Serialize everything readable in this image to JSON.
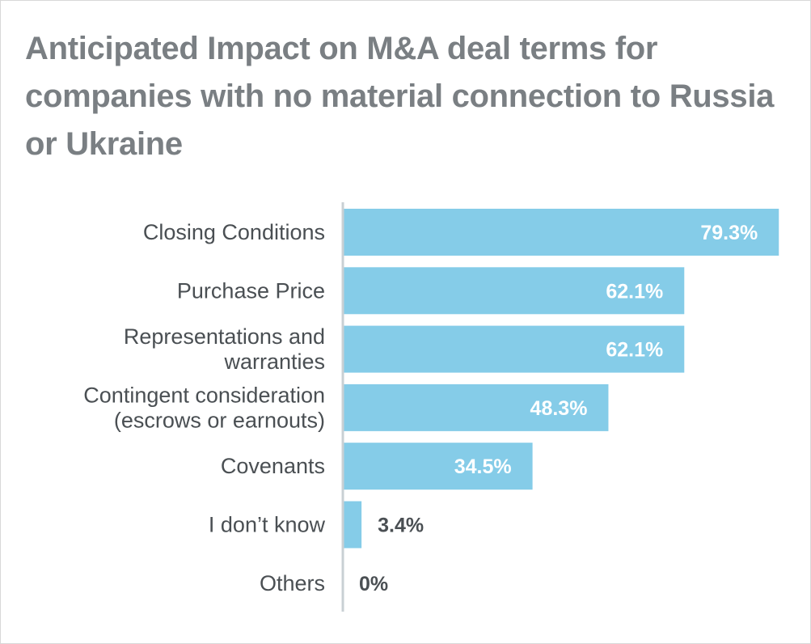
{
  "chart_data": {
    "type": "bar",
    "orientation": "horizontal",
    "title": "Anticipated Impact on M&A deal terms for companies with no material connection to Russia or Ukraine",
    "categories": [
      [
        "Closing Conditions"
      ],
      [
        "Purchase Price"
      ],
      [
        "Representations and",
        "warranties"
      ],
      [
        "Contingent consideration",
        "(escrows or earnouts)"
      ],
      [
        "Covenants"
      ],
      [
        "I don’t know"
      ],
      [
        "Others"
      ]
    ],
    "values": [
      79.3,
      62.1,
      62.1,
      48.3,
      34.5,
      3.4,
      0
    ],
    "value_labels": [
      "79.3%",
      "62.1%",
      "62.1%",
      "48.3%",
      "34.5%",
      "3.4%",
      "0%"
    ],
    "xlim": [
      0,
      80
    ],
    "bar_color": "#85cce8",
    "axis_color": "#c9d0d4",
    "label_color": "#4a4f53",
    "title_color": "#7a7f83"
  }
}
